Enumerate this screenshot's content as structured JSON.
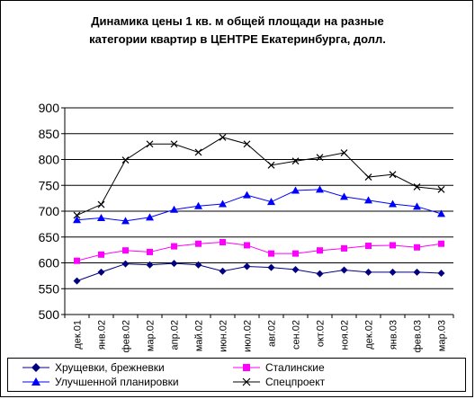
{
  "chart_data": {
    "type": "line",
    "title_lines": [
      "Динамика цены 1 кв. м общей площади на разные",
      "категории квартир в ЦЕНТРЕ Екатеринбурга, долл."
    ],
    "categories": [
      "дек.01",
      "янв.02",
      "фев.02",
      "мар.02",
      "апр.02",
      "май.02",
      "июн.02",
      "июл.02",
      "авг.02",
      "сен.02",
      "окт.02",
      "ноя.02",
      "дек.02",
      "янв.03",
      "фев.03",
      "мар.03"
    ],
    "ylim": [
      500,
      900
    ],
    "yticks": [
      500,
      550,
      600,
      650,
      700,
      750,
      800,
      850,
      900
    ],
    "grid": true,
    "legend_position": "bottom",
    "series": [
      {
        "name": "Хрущевки, брежневки",
        "color": "#000080",
        "marker": "diamond",
        "values": [
          565,
          582,
          598,
          596,
          599,
          596,
          584,
          593,
          591,
          587,
          579,
          586,
          582,
          582,
          582,
          580
        ]
      },
      {
        "name": "Сталинские",
        "color": "#ff00ff",
        "marker": "square",
        "values": [
          604,
          616,
          624,
          621,
          632,
          637,
          640,
          634,
          618,
          618,
          624,
          628,
          633,
          634,
          630,
          637
        ]
      },
      {
        "name": "Улучшенной планировки",
        "color": "#0000ff",
        "marker": "triangle",
        "values": [
          683,
          687,
          681,
          688,
          703,
          710,
          714,
          731,
          718,
          740,
          742,
          728,
          721,
          714,
          709,
          695
        ]
      },
      {
        "name": "Спецпроект",
        "color": "#000000",
        "marker": "x",
        "values": [
          692,
          713,
          799,
          830,
          830,
          814,
          843,
          830,
          789,
          797,
          804,
          813,
          766,
          771,
          747,
          742
        ]
      }
    ]
  }
}
